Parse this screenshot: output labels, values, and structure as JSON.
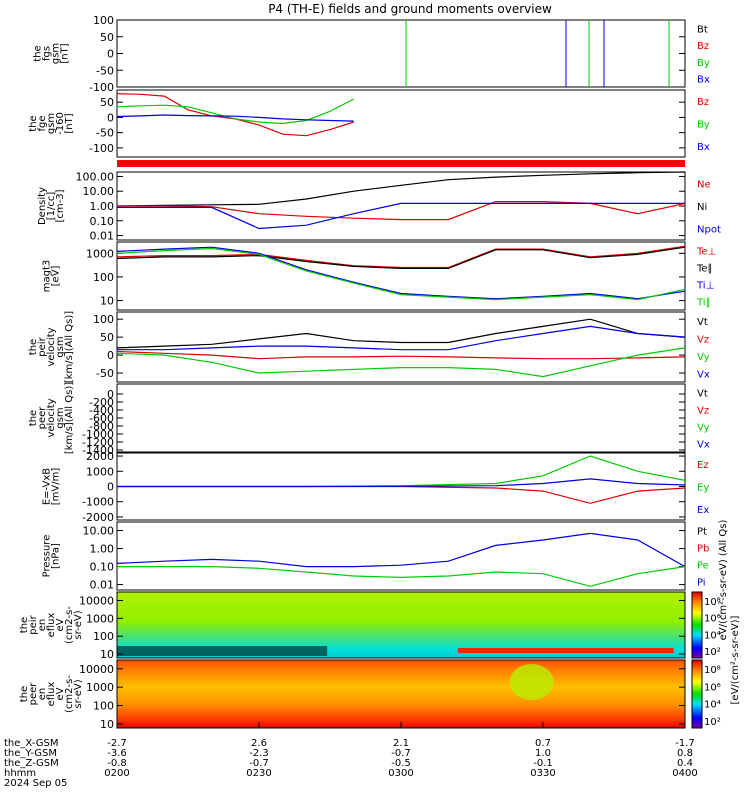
{
  "title": "P4 (TH-E) fields and ground moments overview",
  "colors": {
    "black": "#000000",
    "red": "#e00000",
    "green": "#00cc00",
    "blue": "#0000e0"
  },
  "panels": [
    {
      "id": "fgs",
      "ylabel": [
        "the",
        "fgs",
        "gsm",
        "[nT]"
      ],
      "ylim": [
        -100,
        100
      ],
      "log": false,
      "ticks": [
        "100",
        "50",
        "0",
        "-50",
        "-100"
      ],
      "tickvals": [
        100,
        50,
        0,
        -50,
        -100
      ],
      "legend": [
        {
          "text": "Bt",
          "color": "#000000"
        },
        {
          "text": "Bz",
          "color": "#e00000"
        },
        {
          "text": "By",
          "color": "#00cc00"
        },
        {
          "text": "Bx",
          "color": "#0000e0"
        }
      ]
    },
    {
      "id": "fge",
      "ylabel": [
        "the",
        "fge",
        "gsm",
        "-160",
        "[nT]"
      ],
      "ylim": [
        -130,
        90
      ],
      "log": false,
      "ticks": [
        "50",
        "0",
        "-50",
        "-100"
      ],
      "tickvals": [
        50,
        0,
        -50,
        -100
      ],
      "legend": [
        {
          "text": "Bz",
          "color": "#e00000"
        },
        {
          "text": "By",
          "color": "#00cc00"
        },
        {
          "text": "Bx",
          "color": "#0000e0"
        }
      ]
    },
    {
      "id": "density",
      "ylabel": [
        "Density",
        "[1/cc]",
        "[cm-3]"
      ],
      "ylim": [
        0.005,
        200
      ],
      "log": true,
      "ticks": [
        "100.00",
        "10.00",
        "1.00",
        "0.10",
        "0.01"
      ],
      "tickvals": [
        100,
        10,
        1,
        0.1,
        0.01
      ],
      "legend": [
        {
          "text": "Ne",
          "color": "#e00000"
        },
        {
          "text": "Ni",
          "color": "#000000"
        },
        {
          "text": "Npot",
          "color": "#0000e0"
        }
      ]
    },
    {
      "id": "temp",
      "ylabel": [
        "magt3",
        "[eV]"
      ],
      "ylim": [
        4,
        3000
      ],
      "log": true,
      "ticks": [
        "1000",
        "100",
        "10"
      ],
      "tickvals": [
        1000,
        100,
        10
      ],
      "legend": [
        {
          "text": "Te⊥",
          "color": "#e00000"
        },
        {
          "text": "Te∥",
          "color": "#000000"
        },
        {
          "text": "Ti⊥",
          "color": "#0000e0"
        },
        {
          "text": "Ti∥",
          "color": "#00cc00"
        }
      ]
    },
    {
      "id": "peir",
      "ylabel": [
        "the",
        "peir",
        "velocity",
        "gsm",
        "[km/s](All Qs)]"
      ],
      "ylim": [
        -75,
        120
      ],
      "log": false,
      "ticks": [
        "100",
        "50",
        "0",
        "-50"
      ],
      "tickvals": [
        100,
        50,
        0,
        -50
      ],
      "legend": [
        {
          "text": "Vt",
          "color": "#000000"
        },
        {
          "text": "Vz",
          "color": "#e00000"
        },
        {
          "text": "Vy",
          "color": "#00cc00"
        },
        {
          "text": "Vx",
          "color": "#0000e0"
        }
      ]
    },
    {
      "id": "peer",
      "ylabel": [
        "the",
        "peer",
        "velocity",
        "gsm",
        "[km/s](All Qs)]"
      ],
      "ylim": [
        -1450,
        250
      ],
      "log": false,
      "ticks": [
        "0",
        "-200",
        "-400",
        "-600",
        "-800",
        "-1000",
        "-1200",
        "-1400"
      ],
      "tickvals": [
        0,
        -200,
        -400,
        -600,
        -800,
        -1000,
        -1200,
        -1400
      ],
      "legend": [
        {
          "text": "Vt",
          "color": "#000000"
        },
        {
          "text": "Vz",
          "color": "#e00000"
        },
        {
          "text": "Vy",
          "color": "#00cc00"
        },
        {
          "text": "Vx",
          "color": "#0000e0"
        }
      ]
    },
    {
      "id": "efield",
      "ylabel": [
        "E=-VxB",
        "[mV/m]"
      ],
      "ylim": [
        -2200,
        2200
      ],
      "log": false,
      "ticks": [
        "2000",
        "1000",
        "0",
        "-1000",
        "-2000"
      ],
      "tickvals": [
        2000,
        1000,
        0,
        -1000,
        -2000
      ],
      "legend": [
        {
          "text": "Ez",
          "color": "#e00000"
        },
        {
          "text": "Ey",
          "color": "#00cc00"
        },
        {
          "text": "Ex",
          "color": "#0000e0"
        }
      ]
    },
    {
      "id": "pressure",
      "ylabel": [
        "Pressure",
        "[nPa]"
      ],
      "ylim": [
        0.005,
        30
      ],
      "log": true,
      "ticks": [
        "10.00",
        "1.00",
        "0.10",
        "0.01"
      ],
      "tickvals": [
        10,
        1,
        0.1,
        0.01
      ],
      "legend": [
        {
          "text": "Pt",
          "color": "#000000"
        },
        {
          "text": "Pb",
          "color": "#e00000"
        },
        {
          "text": "Pe",
          "color": "#00cc00"
        },
        {
          "text": "Pi",
          "color": "#0000e0"
        }
      ]
    },
    {
      "id": "peir_spec",
      "ylabel": [
        "the",
        "peir",
        "en",
        "eflux",
        "eV",
        "(cm2-s-",
        "sr-eV)"
      ],
      "ylim": [
        6,
        30000
      ],
      "log": true,
      "ticks": [
        "10000",
        "1000",
        "100",
        "10"
      ],
      "tickvals": [
        10000,
        1000,
        100,
        10
      ],
      "legend": []
    },
    {
      "id": "peer_spec",
      "ylabel": [
        "the",
        "peer",
        "en",
        "eflux",
        "eV",
        "(cm2-s-",
        "sr-eV)"
      ],
      "ylim": [
        6,
        30000
      ],
      "log": true,
      "ticks": [
        "10000",
        "1000",
        "100",
        "10"
      ],
      "tickvals": [
        10000,
        1000,
        100,
        10
      ],
      "legend": []
    }
  ],
  "colorbar_ticks": [
    "10⁸",
    "10⁶",
    "10⁴",
    "10²"
  ],
  "colorbar_label": "[eV/(cm²-s-sr-eV)]",
  "right_spec_label": "eV/(cm²-s-sr-eV) (All Qs)",
  "xaxis": {
    "row_labels": [
      "the_X-GSM",
      "the_Y-GSM",
      "the_Z-GSM",
      "hhmm",
      "2024 Sep 05"
    ],
    "ticks": [
      {
        "x": "-2.7",
        "y": "-3.6",
        "z": "-0.8",
        "t": "0200"
      },
      {
        "x": "2.6",
        "y": "-2.3",
        "z": "-0.7",
        "t": "0230"
      },
      {
        "x": "2.1",
        "y": "-0.7",
        "z": "-0.5",
        "t": "0300"
      },
      {
        "x": "0.7",
        "y": "1.0",
        "z": "-0.1",
        "t": "0330"
      },
      {
        "x": "-1.7",
        "y": "0.8",
        "z": "0.4",
        "t": "0400"
      }
    ]
  },
  "chart_data": {
    "type": "line",
    "title": "P4 (TH-E) fields and ground moments overview",
    "x_range": [
      "0200",
      "0400"
    ],
    "x_ticks": [
      "0200",
      "0230",
      "0300",
      "0330",
      "0400"
    ],
    "series": [
      {
        "panel": "fge",
        "name": "Bz",
        "x": [
          0,
          5,
          10,
          15,
          20,
          25,
          30,
          35,
          40,
          45,
          50
        ],
        "values": [
          78,
          76,
          70,
          25,
          5,
          -5,
          -25,
          -55,
          -60,
          -40,
          -15
        ]
      },
      {
        "panel": "fge",
        "name": "By",
        "x": [
          0,
          5,
          10,
          15,
          20,
          25,
          30,
          35,
          40,
          45,
          50
        ],
        "values": [
          35,
          38,
          40,
          35,
          15,
          -5,
          -15,
          -20,
          -10,
          20,
          60
        ]
      },
      {
        "panel": "fge",
        "name": "Bx",
        "x": [
          0,
          5,
          10,
          15,
          20,
          25,
          30,
          35,
          40,
          45,
          50
        ],
        "values": [
          3,
          5,
          8,
          6,
          5,
          4,
          0,
          -5,
          -8,
          -10,
          -12
        ]
      },
      {
        "panel": "density",
        "name": "Ni",
        "x": [
          0,
          10,
          20,
          30,
          40,
          50,
          60,
          70,
          80,
          90,
          100,
          110,
          120
        ],
        "values": [
          1,
          1.1,
          1.2,
          1.3,
          3,
          10,
          25,
          60,
          90,
          120,
          150,
          180,
          200
        ]
      },
      {
        "panel": "density",
        "name": "Ne",
        "x": [
          0,
          10,
          20,
          30,
          40,
          50,
          60,
          70,
          80,
          90,
          100,
          110,
          120
        ],
        "values": [
          1,
          1,
          0.9,
          0.3,
          0.2,
          0.15,
          0.12,
          0.12,
          2,
          2,
          1.5,
          0.3,
          1.5
        ]
      },
      {
        "panel": "density",
        "name": "Npot",
        "x": [
          0,
          10,
          20,
          30,
          40,
          50,
          60,
          70,
          80,
          90,
          100,
          110,
          120
        ],
        "values": [
          0.8,
          0.8,
          0.8,
          0.03,
          0.05,
          0.3,
          1.5,
          1.5,
          1.5,
          1.5,
          1.5,
          1.5,
          1.5
        ]
      },
      {
        "panel": "temp",
        "name": "Te⊥",
        "x": [
          0,
          10,
          20,
          30,
          40,
          50,
          60,
          70,
          80,
          90,
          100,
          110,
          120
        ],
        "values": [
          700,
          800,
          800,
          900,
          500,
          300,
          250,
          250,
          1500,
          1500,
          700,
          1000,
          2000
        ]
      },
      {
        "panel": "temp",
        "name": "Te∥",
        "x": [
          0,
          10,
          20,
          30,
          40,
          50,
          60,
          70,
          80,
          90,
          100,
          110,
          120
        ],
        "values": [
          600,
          700,
          700,
          800,
          450,
          280,
          230,
          230,
          1400,
          1400,
          650,
          900,
          1800
        ]
      },
      {
        "panel": "temp",
        "name": "Ti⊥",
        "x": [
          0,
          10,
          20,
          30,
          40,
          50,
          60,
          70,
          80,
          90,
          100,
          110,
          120
        ],
        "values": [
          1200,
          1500,
          1800,
          1000,
          200,
          60,
          20,
          15,
          12,
          15,
          20,
          12,
          25
        ]
      },
      {
        "panel": "temp",
        "name": "Ti∥",
        "x": [
          0,
          10,
          20,
          30,
          40,
          50,
          60,
          70,
          80,
          90,
          100,
          110,
          120
        ],
        "values": [
          1000,
          1300,
          1600,
          900,
          180,
          55,
          18,
          14,
          11,
          14,
          18,
          11,
          30
        ]
      },
      {
        "panel": "peir",
        "name": "Vt",
        "x": [
          0,
          10,
          20,
          30,
          40,
          50,
          60,
          70,
          80,
          90,
          100,
          110,
          120
        ],
        "values": [
          20,
          25,
          30,
          45,
          60,
          40,
          35,
          35,
          60,
          80,
          100,
          60,
          50
        ]
      },
      {
        "panel": "peir",
        "name": "Vz",
        "x": [
          0,
          10,
          20,
          30,
          40,
          50,
          60,
          70,
          80,
          90,
          100,
          110,
          120
        ],
        "values": [
          10,
          5,
          0,
          -10,
          -5,
          -5,
          -3,
          -5,
          -8,
          -10,
          -10,
          -8,
          -5
        ]
      },
      {
        "panel": "peir",
        "name": "Vy",
        "x": [
          0,
          10,
          20,
          30,
          40,
          50,
          60,
          70,
          80,
          90,
          100,
          110,
          120
        ],
        "values": [
          5,
          0,
          -20,
          -50,
          -45,
          -40,
          -35,
          -35,
          -40,
          -60,
          -30,
          0,
          20
        ]
      },
      {
        "panel": "peir",
        "name": "Vx",
        "x": [
          0,
          10,
          20,
          30,
          40,
          50,
          60,
          70,
          80,
          90,
          100,
          110,
          120
        ],
        "values": [
          15,
          15,
          20,
          25,
          25,
          20,
          15,
          15,
          40,
          60,
          80,
          60,
          50
        ]
      },
      {
        "panel": "efield",
        "name": "Ez",
        "x": [
          0,
          20,
          40,
          60,
          80,
          90,
          100,
          110,
          120
        ],
        "values": [
          0,
          0,
          0,
          0,
          -100,
          -300,
          -1100,
          -300,
          -100
        ]
      },
      {
        "panel": "efield",
        "name": "Ey",
        "x": [
          0,
          20,
          40,
          60,
          80,
          90,
          100,
          110,
          120
        ],
        "values": [
          0,
          0,
          0,
          50,
          200,
          700,
          2000,
          1000,
          400
        ]
      },
      {
        "panel": "efield",
        "name": "Ex",
        "x": [
          0,
          20,
          40,
          60,
          80,
          90,
          100,
          110,
          120
        ],
        "values": [
          0,
          0,
          0,
          10,
          50,
          200,
          500,
          200,
          100
        ]
      },
      {
        "panel": "pressure",
        "name": "Pi",
        "x": [
          0,
          10,
          20,
          30,
          40,
          50,
          60,
          70,
          80,
          90,
          100,
          110,
          120
        ],
        "values": [
          0.15,
          0.2,
          0.25,
          0.2,
          0.1,
          0.1,
          0.12,
          0.2,
          1.5,
          3,
          7,
          3,
          0.1
        ]
      },
      {
        "panel": "pressure",
        "name": "Pe",
        "x": [
          0,
          10,
          20,
          30,
          40,
          50,
          60,
          70,
          80,
          90,
          100,
          110,
          120
        ],
        "values": [
          0.1,
          0.1,
          0.1,
          0.08,
          0.05,
          0.03,
          0.025,
          0.03,
          0.05,
          0.04,
          0.008,
          0.04,
          0.1
        ]
      }
    ],
    "grid": false,
    "legend_placement": "right"
  }
}
